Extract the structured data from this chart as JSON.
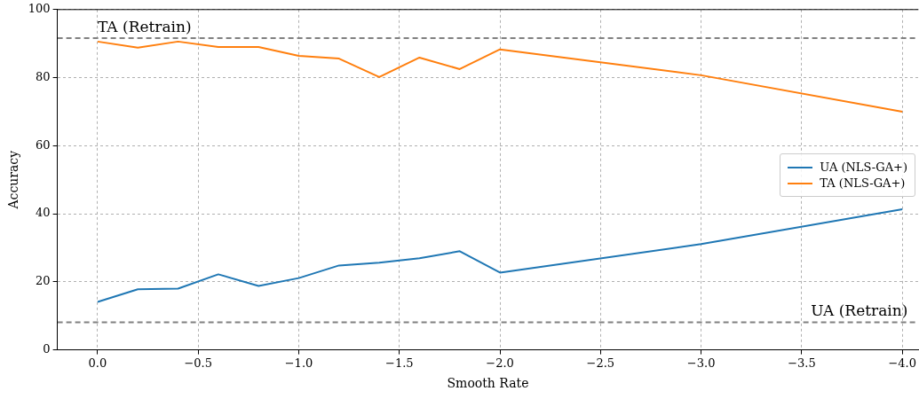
{
  "chart_data": {
    "type": "line",
    "xlabel": "Smooth Rate",
    "ylabel": "Accuracy",
    "series": [
      {
        "name": "UA (NLS-GA+)",
        "color": "#1f77b4",
        "x": [
          0,
          -0.2,
          -0.4,
          -0.6,
          -0.8,
          -1.0,
          -1.2,
          -1.4,
          -1.6,
          -1.8,
          -2.0,
          -3.0,
          -4.0
        ],
        "values": [
          14.1,
          17.8,
          18,
          22.2,
          18.8,
          21.1,
          24.8,
          25.6,
          26.9,
          29,
          22.7,
          31.1,
          41.3
        ]
      },
      {
        "name": "TA (NLS-GA+)",
        "color": "#ff7f0e",
        "x": [
          0,
          -0.2,
          -0.4,
          -0.6,
          -0.8,
          -1.0,
          -1.2,
          -1.4,
          -1.6,
          -1.8,
          -2.0,
          -3.0,
          -4.0
        ],
        "values": [
          90.6,
          88.8,
          90.6,
          89,
          89,
          86.4,
          85.6,
          80.2,
          85.9,
          82.5,
          88.3,
          80.7,
          70
        ]
      }
    ],
    "xlim": [
      0.2,
      -4.08
    ],
    "ylim": [
      0,
      100
    ],
    "xticks": [
      {
        "value": 0,
        "label": "0.0"
      },
      {
        "value": -0.5,
        "label": "−0.5"
      },
      {
        "value": -1.0,
        "label": "−1.0"
      },
      {
        "value": -1.5,
        "label": "−1.5"
      },
      {
        "value": -2.0,
        "label": "−2.0"
      },
      {
        "value": -2.5,
        "label": "−2.5"
      },
      {
        "value": -3.0,
        "label": "−3.0"
      },
      {
        "value": -3.5,
        "label": "−3.5"
      },
      {
        "value": -4.0,
        "label": "−4.0"
      }
    ],
    "yticks": [
      0,
      20,
      40,
      60,
      80,
      100
    ],
    "ref_lines": [
      {
        "axis": "y",
        "value": 91.6,
        "label": "TA (Retrain)",
        "color": "#808080",
        "line_style": "dashed"
      },
      {
        "axis": "y",
        "value": 8.1,
        "label": "UA (Retrain)",
        "color": "#808080",
        "line_style": "dashed"
      }
    ],
    "grid": true,
    "legend": "right",
    "marker": "none",
    "line_style": "solid"
  }
}
